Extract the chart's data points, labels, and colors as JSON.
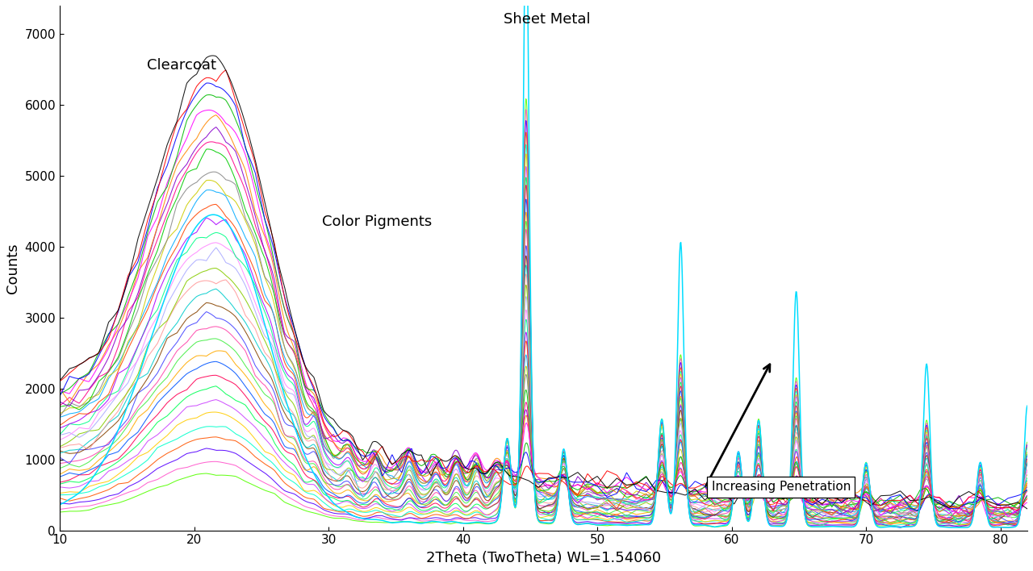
{
  "title": "",
  "xlabel": "2Theta (TwoTheta) WL=1.54060",
  "ylabel": "Counts",
  "xlim": [
    10,
    82
  ],
  "ylim": [
    0,
    7400
  ],
  "yticks": [
    0,
    1000,
    2000,
    3000,
    4000,
    5000,
    6000,
    7000
  ],
  "xticks": [
    10,
    20,
    30,
    40,
    50,
    60,
    70,
    80
  ],
  "n_layers": 35,
  "background_color": "#ffffff",
  "xlabel_fontsize": 13,
  "ylabel_fontsize": 13,
  "tick_fontsize": 11,
  "annotation_fontsize": 13,
  "clearcoat_label": "Clearcoat",
  "sheetmetal_label": "Sheet Metal",
  "colorpigments_label": "Color Pigments",
  "penetration_label": "Increasing Penetration"
}
